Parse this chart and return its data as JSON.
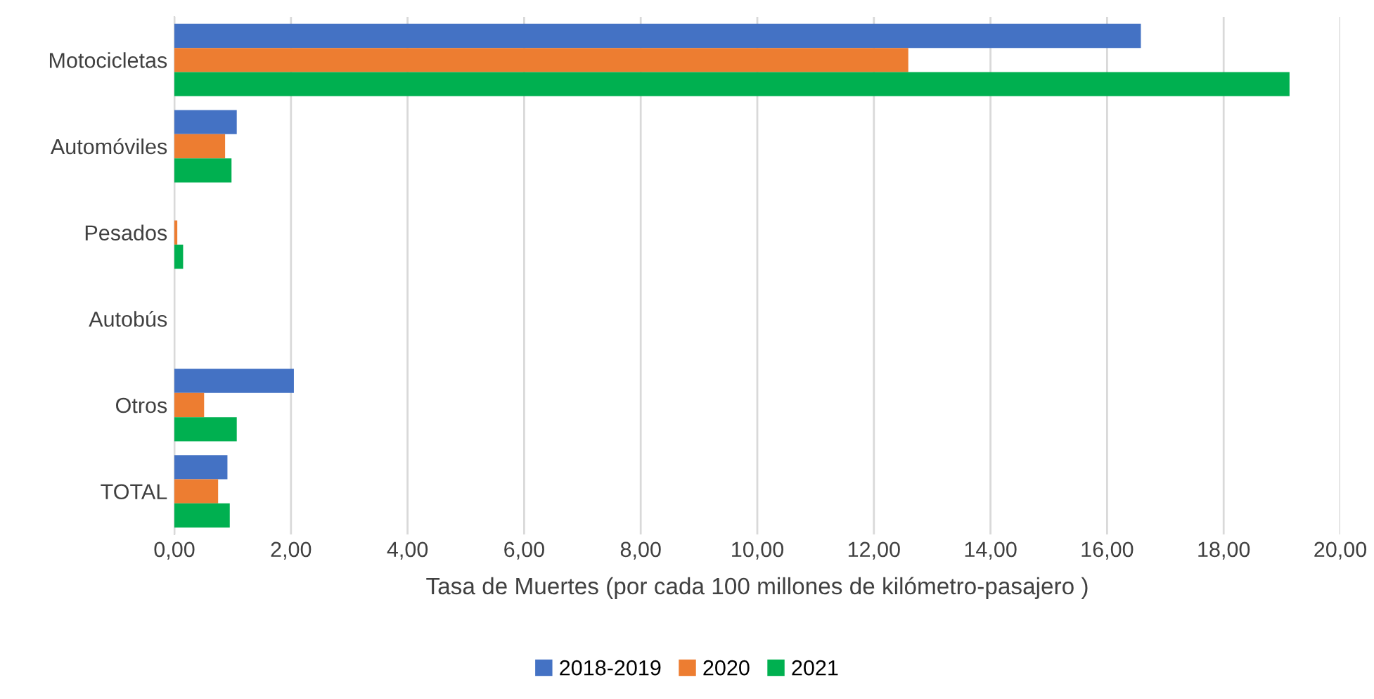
{
  "chart_data": {
    "type": "bar",
    "orientation": "horizontal",
    "categories": [
      "Motocicletas",
      "Automóviles",
      "Pesados",
      "Autobús",
      "Otros",
      "TOTAL"
    ],
    "series": [
      {
        "name": "2018-2019",
        "color": "#4472c4",
        "values": [
          16.58,
          1.07,
          0,
          0,
          2.05,
          0.91
        ]
      },
      {
        "name": "2020",
        "color": "#ed7d31",
        "values": [
          12.59,
          0.87,
          0.05,
          0,
          0.51,
          0.75
        ]
      },
      {
        "name": "2021",
        "color": "#00b050",
        "values": [
          19.13,
          0.98,
          0.15,
          0,
          1.07,
          0.95
        ]
      }
    ],
    "xlabel": "Tasa de Muertes (por cada 100 millones de kilómetro-pasajero )",
    "xlim": [
      0,
      20
    ],
    "xticks": [
      {
        "value": 0,
        "label": "0,00"
      },
      {
        "value": 2,
        "label": "2,00"
      },
      {
        "value": 4,
        "label": "4,00"
      },
      {
        "value": 6,
        "label": "6,00"
      },
      {
        "value": 8,
        "label": "8,00"
      },
      {
        "value": 10,
        "label": "10,00"
      },
      {
        "value": 12,
        "label": "12,00"
      },
      {
        "value": 14,
        "label": "14,00"
      },
      {
        "value": 16,
        "label": "16,00"
      },
      {
        "value": 18,
        "label": "18,00"
      },
      {
        "value": 20,
        "label": "20,00"
      }
    ],
    "grid": "x",
    "legend": "bottom"
  }
}
